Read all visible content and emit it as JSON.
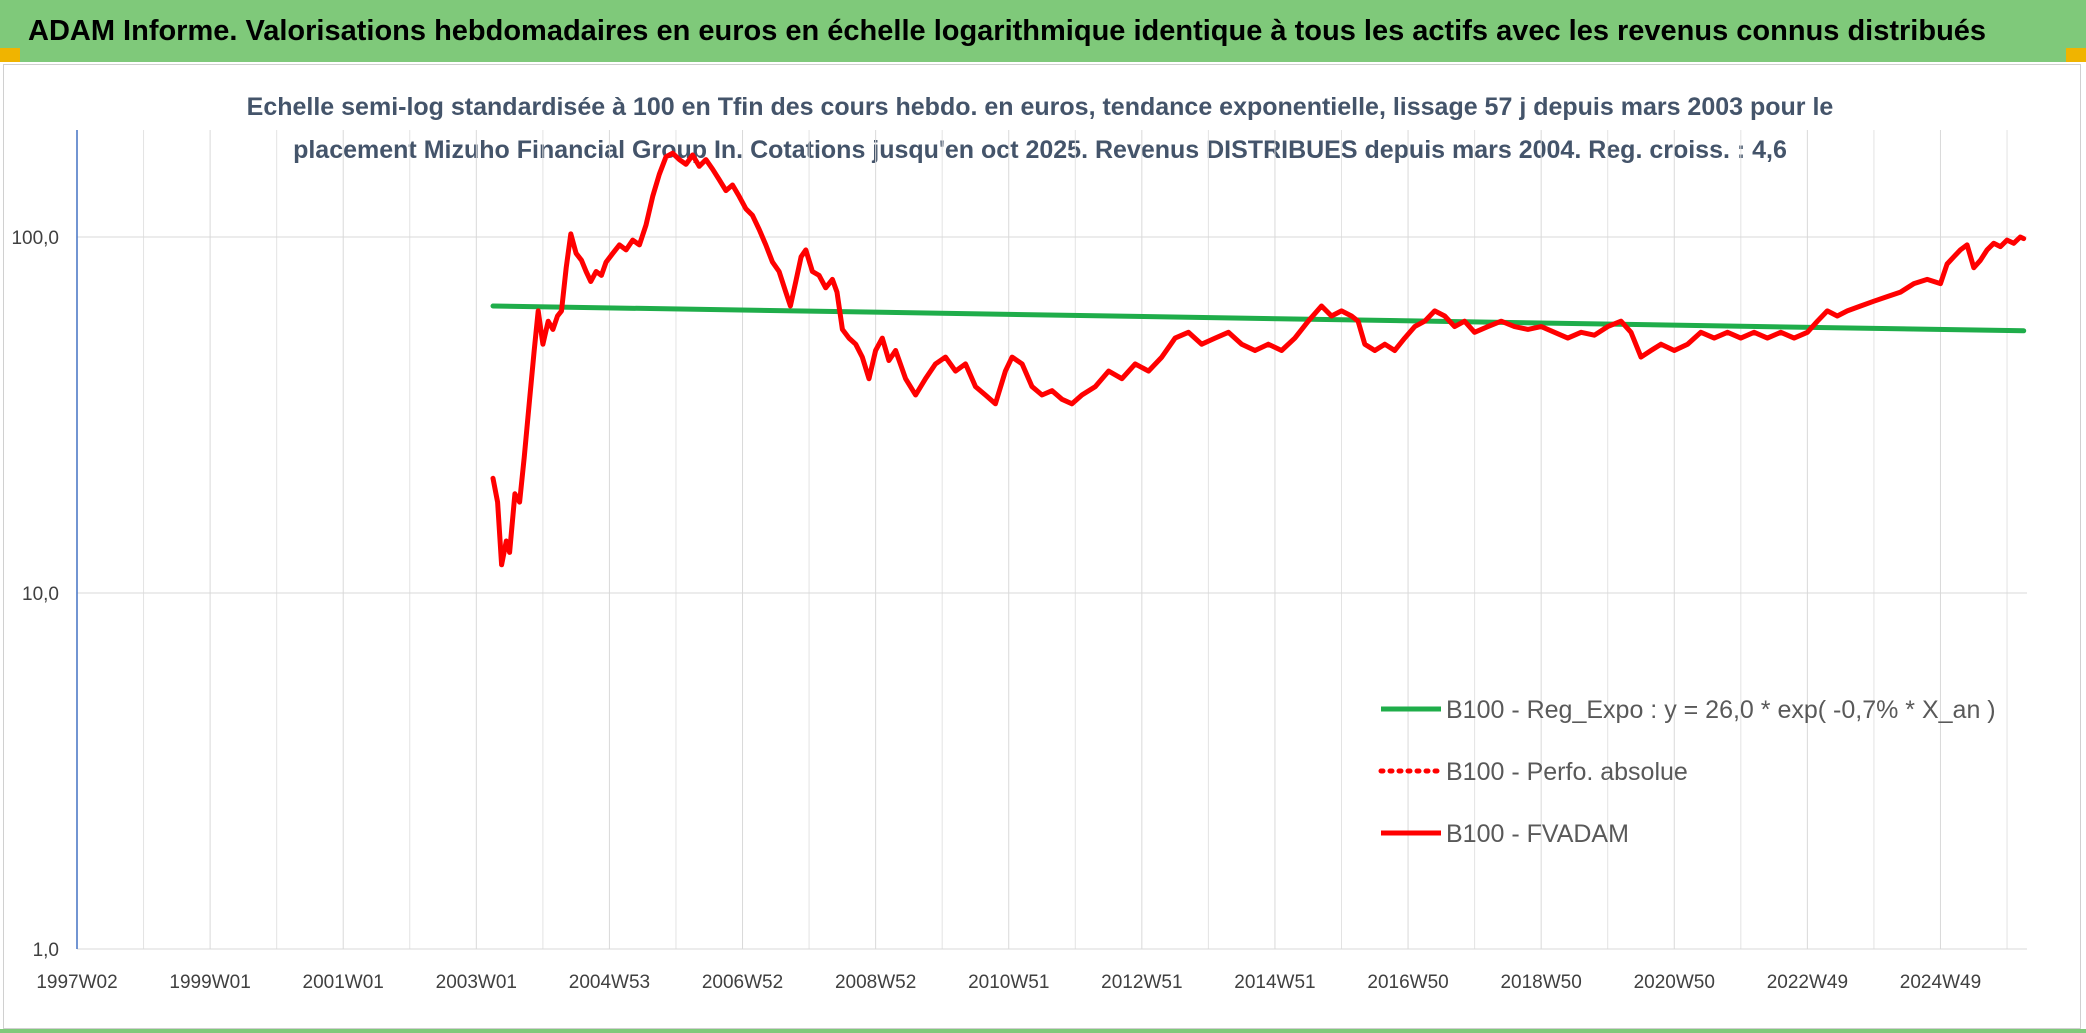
{
  "header": {
    "title": "ADAM Informe. Valorisations hebdomadaires en euros en échelle logarithmique identique à tous les actifs avec les revenus connus distribués"
  },
  "chart_data": {
    "type": "line",
    "subtitle_line1": "Echelle semi-log standardisée à 100 en Tfin des cours hebdo. en euros, tendance exponentielle, lissage 57 j depuis mars 2003 pour le",
    "subtitle_line2": "placement Mizuho Financial Group In. Cotations jusqu'en oct 2025. Revenus DISTRIBUES depuis mars 2004. Reg. croiss. : 4,6",
    "y_scale": "log",
    "ylim": [
      1,
      180
    ],
    "xlim": [
      1997.0,
      2026.3
    ],
    "y_ticks": [
      {
        "value": 100,
        "label": "100,0"
      },
      {
        "value": 10,
        "label": "10,0"
      },
      {
        "value": 1,
        "label": "1,0"
      }
    ],
    "x_ticks": [
      {
        "value": 1997.0,
        "label": "1997W02"
      },
      {
        "value": 1999.0,
        "label": "1999W01"
      },
      {
        "value": 2001.0,
        "label": "2001W01"
      },
      {
        "value": 2003.0,
        "label": "2003W01"
      },
      {
        "value": 2005.0,
        "label": "2004W53"
      },
      {
        "value": 2007.0,
        "label": "2006W52"
      },
      {
        "value": 2009.0,
        "label": "2008W52"
      },
      {
        "value": 2011.0,
        "label": "2010W51"
      },
      {
        "value": 2013.0,
        "label": "2012W51"
      },
      {
        "value": 2015.0,
        "label": "2014W51"
      },
      {
        "value": 2017.0,
        "label": "2016W50"
      },
      {
        "value": 2019.0,
        "label": "2018W50"
      },
      {
        "value": 2021.0,
        "label": "2020W50"
      },
      {
        "value": 2023.0,
        "label": "2022W49"
      },
      {
        "value": 2025.0,
        "label": "2024W49"
      }
    ],
    "grid": true,
    "legend_position": "bottom-right",
    "series": [
      {
        "name": "B100 - Reg_Expo : y = 26,0 * exp( -0,7% *  X_an )",
        "color": "#1fad4a",
        "style": "solid",
        "points": [
          [
            2003.25,
            64.0
          ],
          [
            2026.25,
            54.5
          ]
        ]
      },
      {
        "name": "B100 - Perfo. absolue",
        "color": "#ff0000",
        "style": "dotted",
        "points": []
      },
      {
        "name": "B100 - FVADAM",
        "color": "#ff0000",
        "style": "solid",
        "points": [
          [
            2003.25,
            21
          ],
          [
            2003.32,
            18
          ],
          [
            2003.38,
            12
          ],
          [
            2003.45,
            14
          ],
          [
            2003.5,
            13
          ],
          [
            2003.58,
            19
          ],
          [
            2003.65,
            18
          ],
          [
            2003.72,
            24
          ],
          [
            2003.8,
            35
          ],
          [
            2003.87,
            48
          ],
          [
            2003.93,
            62
          ],
          [
            2004.0,
            50
          ],
          [
            2004.08,
            58
          ],
          [
            2004.15,
            55
          ],
          [
            2004.22,
            60
          ],
          [
            2004.28,
            62
          ],
          [
            2004.35,
            82
          ],
          [
            2004.42,
            102
          ],
          [
            2004.5,
            90
          ],
          [
            2004.58,
            86
          ],
          [
            2004.65,
            80
          ],
          [
            2004.72,
            75
          ],
          [
            2004.8,
            80
          ],
          [
            2004.88,
            78
          ],
          [
            2004.95,
            85
          ],
          [
            2005.05,
            90
          ],
          [
            2005.15,
            95
          ],
          [
            2005.25,
            92
          ],
          [
            2005.35,
            98
          ],
          [
            2005.45,
            95
          ],
          [
            2005.55,
            108
          ],
          [
            2005.65,
            130
          ],
          [
            2005.75,
            150
          ],
          [
            2005.85,
            168
          ],
          [
            2005.95,
            172
          ],
          [
            2006.05,
            165
          ],
          [
            2006.15,
            160
          ],
          [
            2006.25,
            170
          ],
          [
            2006.35,
            158
          ],
          [
            2006.45,
            165
          ],
          [
            2006.55,
            155
          ],
          [
            2006.65,
            145
          ],
          [
            2006.75,
            135
          ],
          [
            2006.85,
            140
          ],
          [
            2006.95,
            130
          ],
          [
            2007.05,
            120
          ],
          [
            2007.15,
            115
          ],
          [
            2007.25,
            105
          ],
          [
            2007.35,
            95
          ],
          [
            2007.45,
            85
          ],
          [
            2007.55,
            80
          ],
          [
            2007.65,
            70
          ],
          [
            2007.72,
            64
          ],
          [
            2007.8,
            75
          ],
          [
            2007.88,
            88
          ],
          [
            2007.95,
            92
          ],
          [
            2008.05,
            80
          ],
          [
            2008.15,
            78
          ],
          [
            2008.25,
            72
          ],
          [
            2008.35,
            76
          ],
          [
            2008.42,
            70
          ],
          [
            2008.5,
            55
          ],
          [
            2008.6,
            52
          ],
          [
            2008.7,
            50
          ],
          [
            2008.8,
            46
          ],
          [
            2008.9,
            40
          ],
          [
            2009.0,
            48
          ],
          [
            2009.1,
            52
          ],
          [
            2009.2,
            45
          ],
          [
            2009.3,
            48
          ],
          [
            2009.45,
            40
          ],
          [
            2009.6,
            36
          ],
          [
            2009.75,
            40
          ],
          [
            2009.9,
            44
          ],
          [
            2010.05,
            46
          ],
          [
            2010.2,
            42
          ],
          [
            2010.35,
            44
          ],
          [
            2010.5,
            38
          ],
          [
            2010.65,
            36
          ],
          [
            2010.8,
            34
          ],
          [
            2010.95,
            42
          ],
          [
            2011.05,
            46
          ],
          [
            2011.2,
            44
          ],
          [
            2011.35,
            38
          ],
          [
            2011.5,
            36
          ],
          [
            2011.65,
            37
          ],
          [
            2011.8,
            35
          ],
          [
            2011.95,
            34
          ],
          [
            2012.1,
            36
          ],
          [
            2012.3,
            38
          ],
          [
            2012.5,
            42
          ],
          [
            2012.7,
            40
          ],
          [
            2012.9,
            44
          ],
          [
            2013.1,
            42
          ],
          [
            2013.3,
            46
          ],
          [
            2013.5,
            52
          ],
          [
            2013.7,
            54
          ],
          [
            2013.9,
            50
          ],
          [
            2014.1,
            52
          ],
          [
            2014.3,
            54
          ],
          [
            2014.5,
            50
          ],
          [
            2014.7,
            48
          ],
          [
            2014.9,
            50
          ],
          [
            2015.1,
            48
          ],
          [
            2015.3,
            52
          ],
          [
            2015.5,
            58
          ],
          [
            2015.7,
            64
          ],
          [
            2015.85,
            60
          ],
          [
            2016.0,
            62
          ],
          [
            2016.15,
            60
          ],
          [
            2016.25,
            58
          ],
          [
            2016.35,
            50
          ],
          [
            2016.5,
            48
          ],
          [
            2016.65,
            50
          ],
          [
            2016.8,
            48
          ],
          [
            2016.95,
            52
          ],
          [
            2017.1,
            56
          ],
          [
            2017.25,
            58
          ],
          [
            2017.4,
            62
          ],
          [
            2017.55,
            60
          ],
          [
            2017.7,
            56
          ],
          [
            2017.85,
            58
          ],
          [
            2018.0,
            54
          ],
          [
            2018.2,
            56
          ],
          [
            2018.4,
            58
          ],
          [
            2018.6,
            56
          ],
          [
            2018.8,
            55
          ],
          [
            2019.0,
            56
          ],
          [
            2019.2,
            54
          ],
          [
            2019.4,
            52
          ],
          [
            2019.6,
            54
          ],
          [
            2019.8,
            53
          ],
          [
            2020.0,
            56
          ],
          [
            2020.2,
            58
          ],
          [
            2020.35,
            54
          ],
          [
            2020.5,
            46
          ],
          [
            2020.65,
            48
          ],
          [
            2020.8,
            50
          ],
          [
            2021.0,
            48
          ],
          [
            2021.2,
            50
          ],
          [
            2021.4,
            54
          ],
          [
            2021.6,
            52
          ],
          [
            2021.8,
            54
          ],
          [
            2022.0,
            52
          ],
          [
            2022.2,
            54
          ],
          [
            2022.4,
            52
          ],
          [
            2022.6,
            54
          ],
          [
            2022.8,
            52
          ],
          [
            2023.0,
            54
          ],
          [
            2023.15,
            58
          ],
          [
            2023.3,
            62
          ],
          [
            2023.45,
            60
          ],
          [
            2023.6,
            62
          ],
          [
            2023.8,
            64
          ],
          [
            2024.0,
            66
          ],
          [
            2024.2,
            68
          ],
          [
            2024.4,
            70
          ],
          [
            2024.6,
            74
          ],
          [
            2024.8,
            76
          ],
          [
            2025.0,
            74
          ],
          [
            2025.1,
            84
          ],
          [
            2025.2,
            88
          ],
          [
            2025.3,
            92
          ],
          [
            2025.4,
            95
          ],
          [
            2025.5,
            82
          ],
          [
            2025.6,
            86
          ],
          [
            2025.7,
            92
          ],
          [
            2025.8,
            96
          ],
          [
            2025.9,
            94
          ],
          [
            2026.0,
            98
          ],
          [
            2026.1,
            96
          ],
          [
            2026.2,
            100
          ],
          [
            2026.25,
            99
          ]
        ]
      }
    ]
  }
}
